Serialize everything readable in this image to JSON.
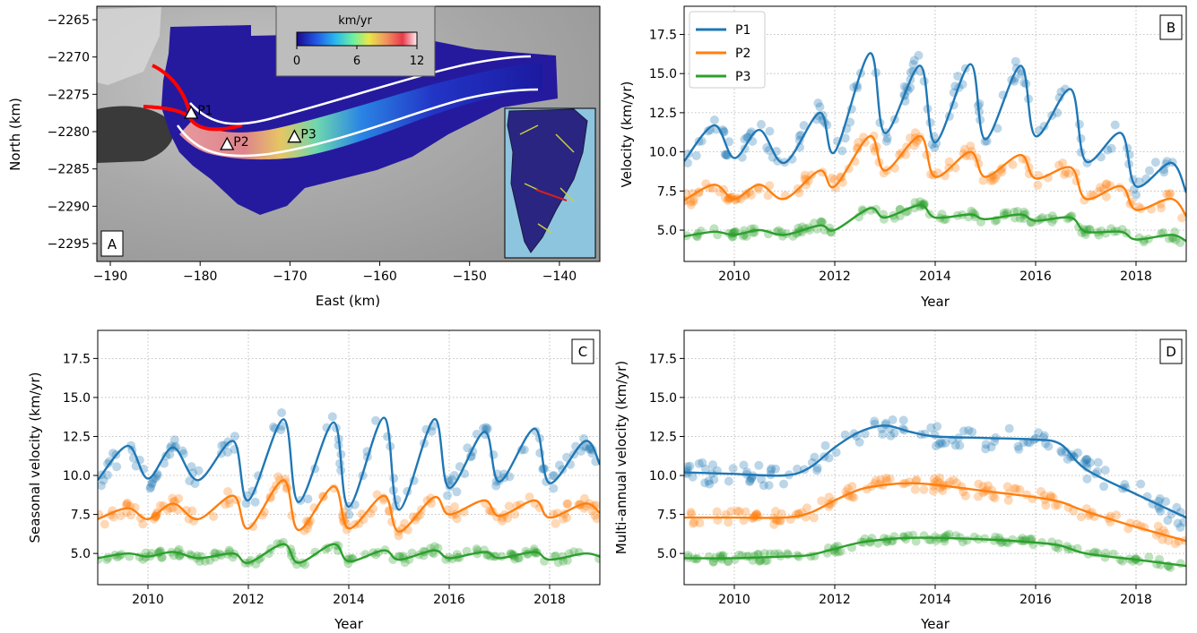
{
  "panel_a": {
    "label": "A",
    "xlabel": "East (km)",
    "ylabel": "North (km)",
    "xticks": [
      "−190",
      "−180",
      "−170",
      "−160",
      "−150",
      "−140"
    ],
    "yticks": [
      "−2265",
      "−2270",
      "−2275",
      "−2280",
      "−2285",
      "−2290",
      "−2295"
    ],
    "colorbar": {
      "title": "km/yr",
      "ticks": [
        "0",
        "6",
        "12"
      ]
    },
    "points": [
      {
        "name": "P1",
        "x": -181.0,
        "y": -2277.6
      },
      {
        "name": "P2",
        "x": -177.0,
        "y": -2281.8
      },
      {
        "name": "P3",
        "x": -169.5,
        "y": -2280.8
      }
    ]
  },
  "panels": [
    {
      "id": "B",
      "label": "B",
      "xlabel": "Year",
      "ylabel": "Velocity (km/yr)"
    },
    {
      "id": "C",
      "label": "C",
      "xlabel": "Year",
      "ylabel": "Seasonal velocity (km/yr)"
    },
    {
      "id": "D",
      "label": "D",
      "xlabel": "Year",
      "ylabel": "Multi-annual velocity (km/yr)"
    }
  ],
  "legend": [
    "P1",
    "P2",
    "P3"
  ],
  "colors": {
    "P1": "#1f77b4",
    "P2": "#ff7f0e",
    "P3": "#2ca02c"
  },
  "xticks": [
    "2010",
    "2012",
    "2016",
    "2014",
    "2018"
  ],
  "yticks": [
    "5.0",
    "7.5",
    "10.0",
    "12.5",
    "15.0",
    "17.5"
  ],
  "chart_data": [
    {
      "type": "line",
      "title": "",
      "xlabel": "Year",
      "ylabel": "Velocity (km/yr)",
      "xlim": [
        2009.0,
        2019.0
      ],
      "ylim": [
        3.0,
        19.3
      ],
      "grid": true,
      "legend_position": "top-left",
      "series": [
        {
          "name": "P1",
          "x": [
            2009.0,
            2009.6,
            2010.0,
            2010.5,
            2011.0,
            2011.7,
            2012.0,
            2012.7,
            2013.0,
            2013.7,
            2014.0,
            2014.7,
            2015.0,
            2015.7,
            2016.0,
            2016.7,
            2017.0,
            2017.7,
            2018.0,
            2018.7,
            2019.0
          ],
          "values": [
            9.4,
            11.7,
            9.6,
            11.4,
            9.3,
            12.5,
            10.0,
            16.3,
            11.2,
            15.5,
            10.6,
            15.6,
            10.8,
            15.5,
            11.0,
            14.0,
            9.4,
            11.2,
            7.8,
            9.3,
            7.4
          ]
        },
        {
          "name": "P2",
          "x": [
            2009.0,
            2009.6,
            2010.0,
            2010.5,
            2011.0,
            2011.7,
            2012.0,
            2012.7,
            2013.0,
            2013.7,
            2014.0,
            2014.7,
            2015.0,
            2015.7,
            2016.0,
            2016.7,
            2017.0,
            2017.7,
            2018.0,
            2018.7,
            2019.0
          ],
          "values": [
            6.9,
            7.9,
            7.0,
            7.9,
            7.0,
            8.8,
            7.8,
            11.0,
            8.8,
            11.0,
            8.4,
            10.0,
            8.4,
            9.8,
            8.3,
            9.0,
            7.0,
            7.8,
            6.3,
            7.0,
            5.9
          ]
        },
        {
          "name": "P3",
          "x": [
            2009.0,
            2009.6,
            2010.0,
            2010.5,
            2011.0,
            2011.7,
            2012.0,
            2012.7,
            2013.0,
            2013.7,
            2014.0,
            2014.7,
            2015.0,
            2015.7,
            2016.0,
            2016.7,
            2017.0,
            2017.7,
            2018.0,
            2018.7,
            2019.0
          ],
          "values": [
            4.6,
            4.9,
            4.7,
            5.0,
            4.7,
            5.3,
            5.0,
            6.4,
            5.8,
            6.6,
            5.8,
            6.0,
            5.7,
            6.0,
            5.6,
            5.8,
            4.9,
            4.9,
            4.4,
            4.7,
            4.3
          ]
        }
      ]
    },
    {
      "type": "line",
      "title": "",
      "xlabel": "Year",
      "ylabel": "Seasonal velocity (km/yr)",
      "xlim": [
        2009.0,
        2019.0
      ],
      "ylim": [
        3.0,
        19.3
      ],
      "grid": true,
      "series": [
        {
          "name": "P1",
          "x": [
            2009.0,
            2009.6,
            2010.0,
            2010.5,
            2011.0,
            2011.7,
            2012.0,
            2012.7,
            2013.0,
            2013.7,
            2014.0,
            2014.7,
            2015.0,
            2015.7,
            2016.0,
            2016.7,
            2017.0,
            2017.7,
            2018.0,
            2018.7,
            2019.0
          ],
          "values": [
            9.7,
            11.9,
            9.8,
            11.8,
            9.7,
            12.2,
            8.4,
            13.6,
            8.3,
            13.4,
            8.0,
            13.7,
            7.8,
            13.6,
            9.2,
            12.8,
            9.6,
            13.0,
            9.5,
            12.2,
            10.7
          ]
        },
        {
          "name": "P2",
          "x": [
            2009.0,
            2009.6,
            2010.0,
            2010.5,
            2011.0,
            2011.7,
            2012.0,
            2012.7,
            2013.0,
            2013.7,
            2014.0,
            2014.7,
            2015.0,
            2015.7,
            2016.0,
            2016.7,
            2017.0,
            2017.7,
            2018.0,
            2018.7,
            2019.0
          ],
          "values": [
            7.2,
            7.9,
            7.2,
            8.2,
            7.2,
            8.7,
            6.6,
            9.7,
            6.5,
            9.3,
            6.6,
            8.7,
            6.4,
            8.6,
            7.5,
            8.4,
            7.4,
            8.4,
            7.3,
            8.2,
            7.6
          ]
        },
        {
          "name": "P3",
          "x": [
            2009.0,
            2009.6,
            2010.0,
            2010.5,
            2011.0,
            2011.7,
            2012.0,
            2012.7,
            2013.0,
            2013.7,
            2014.0,
            2014.7,
            2015.0,
            2015.7,
            2016.0,
            2016.7,
            2017.0,
            2017.7,
            2018.0,
            2018.7,
            2019.0
          ],
          "values": [
            4.7,
            5.0,
            4.8,
            5.1,
            4.7,
            5.0,
            4.4,
            5.6,
            4.4,
            5.6,
            4.5,
            5.2,
            4.6,
            5.2,
            4.7,
            5.1,
            4.7,
            5.1,
            4.6,
            5.0,
            4.8
          ]
        }
      ]
    },
    {
      "type": "line",
      "title": "",
      "xlabel": "Year",
      "ylabel": "Multi-annual velocity (km/yr)",
      "xlim": [
        2009.0,
        2019.0
      ],
      "ylim": [
        3.0,
        19.3
      ],
      "grid": true,
      "series": [
        {
          "name": "P1",
          "x": [
            2009.0,
            2010.0,
            2011.0,
            2011.5,
            2012.0,
            2012.5,
            2013.0,
            2013.5,
            2014.0,
            2015.0,
            2016.0,
            2016.5,
            2017.0,
            2018.0,
            2019.0
          ],
          "values": [
            10.2,
            10.1,
            10.0,
            10.5,
            11.8,
            12.8,
            13.2,
            12.8,
            12.5,
            12.4,
            12.3,
            12.0,
            10.4,
            8.8,
            7.3
          ]
        },
        {
          "name": "P2",
          "x": [
            2009.0,
            2010.0,
            2011.0,
            2011.5,
            2012.0,
            2012.5,
            2013.0,
            2013.5,
            2014.0,
            2015.0,
            2016.0,
            2016.5,
            2017.0,
            2018.0,
            2019.0
          ],
          "values": [
            7.3,
            7.3,
            7.3,
            7.6,
            8.4,
            9.1,
            9.4,
            9.5,
            9.4,
            9.0,
            8.6,
            8.3,
            7.7,
            6.7,
            5.8
          ]
        },
        {
          "name": "P3",
          "x": [
            2009.0,
            2010.0,
            2011.0,
            2011.5,
            2012.0,
            2012.5,
            2013.0,
            2013.5,
            2014.0,
            2015.0,
            2016.0,
            2016.5,
            2017.0,
            2018.0,
            2019.0
          ],
          "values": [
            4.7,
            4.7,
            4.8,
            4.9,
            5.3,
            5.7,
            5.9,
            6.0,
            6.0,
            5.9,
            5.7,
            5.5,
            5.0,
            4.6,
            4.2
          ]
        }
      ]
    }
  ]
}
